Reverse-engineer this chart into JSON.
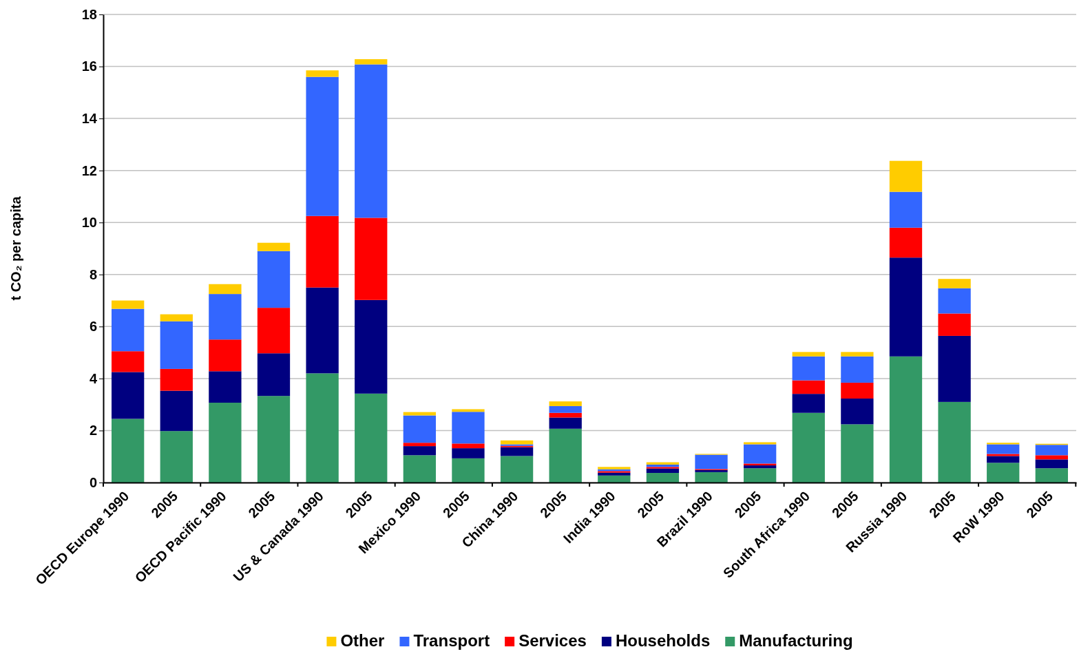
{
  "chart_data": {
    "type": "bar",
    "stacked": true,
    "ylabel": "t CO₂ per capita",
    "categories": [
      "OECD Europe 1990",
      "2005",
      "OECD Pacific 1990",
      "2005",
      "US & Canada 1990",
      "2005",
      "Mexico 1990",
      "2005",
      "China 1990",
      "2005",
      "India 1990",
      "2005",
      "Brazil 1990",
      "2005",
      "South Africa 1990",
      "2005",
      "Russia 1990",
      "2005",
      "RoW 1990",
      "2005"
    ],
    "series": [
      {
        "name": "Manufacturing",
        "color": "#339966",
        "values": [
          2.45,
          1.98,
          3.07,
          3.33,
          4.2,
          3.42,
          1.05,
          0.93,
          1.02,
          2.07,
          0.27,
          0.37,
          0.4,
          0.55,
          2.68,
          2.24,
          4.85,
          3.1,
          0.76,
          0.55
        ]
      },
      {
        "name": "Households",
        "color": "#000080",
        "values": [
          1.8,
          1.55,
          1.21,
          1.64,
          3.3,
          3.6,
          0.35,
          0.39,
          0.34,
          0.43,
          0.11,
          0.17,
          0.08,
          0.11,
          0.73,
          0.99,
          3.8,
          2.54,
          0.26,
          0.34
        ]
      },
      {
        "name": "Services",
        "color": "#ff0000",
        "values": [
          0.8,
          0.84,
          1.22,
          1.75,
          2.75,
          3.16,
          0.13,
          0.18,
          0.05,
          0.18,
          0.06,
          0.06,
          0.04,
          0.07,
          0.52,
          0.61,
          1.15,
          0.86,
          0.08,
          0.16
        ]
      },
      {
        "name": "Transport",
        "color": "#3366ff",
        "values": [
          1.63,
          1.83,
          1.75,
          2.18,
          5.35,
          5.9,
          1.05,
          1.22,
          0.06,
          0.26,
          0.07,
          0.09,
          0.55,
          0.74,
          0.92,
          1.01,
          1.38,
          0.97,
          0.37,
          0.4
        ]
      },
      {
        "name": "Other",
        "color": "#ffcc00",
        "values": [
          0.32,
          0.27,
          0.38,
          0.32,
          0.25,
          0.2,
          0.13,
          0.1,
          0.15,
          0.18,
          0.09,
          0.09,
          0.03,
          0.08,
          0.17,
          0.17,
          1.19,
          0.36,
          0.06,
          0.04
        ]
      }
    ],
    "ylim": [
      0,
      18
    ],
    "yticks": [
      0,
      2,
      4,
      6,
      8,
      10,
      12,
      14,
      16,
      18
    ],
    "grid": "y",
    "legend": "bottom"
  }
}
